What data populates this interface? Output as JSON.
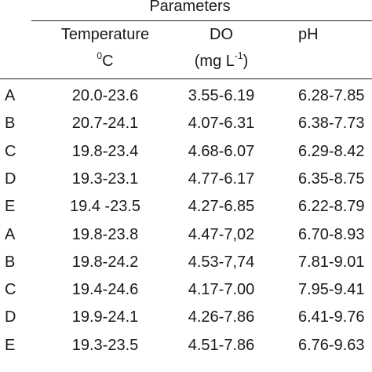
{
  "table": {
    "group_header": "Parameters",
    "columns": [
      {
        "name": "Temperature",
        "unit_sup": "0",
        "unit": "C"
      },
      {
        "name": "DO",
        "unit_prefix": "(mg L",
        "unit_sup": "-1",
        "unit_suffix": ")"
      },
      {
        "name": "pH"
      }
    ],
    "rows": [
      {
        "label": "A",
        "temperature": "20.0-23.6",
        "do": "3.55-6.19",
        "ph": "6.28-7.85"
      },
      {
        "label": "B",
        "temperature": "20.7-24.1",
        "do": "4.07-6.31",
        "ph": "6.38-7.73"
      },
      {
        "label": "C",
        "temperature": "19.8-23.4",
        "do": "4.68-6.07",
        "ph": "6.29-8.42"
      },
      {
        "label": "D",
        "temperature": "19.3-23.1",
        "do": "4.77-6.17",
        "ph": "6.35-8.75"
      },
      {
        "label": "E",
        "temperature": "19.4 -23.5",
        "do": "4.27-6.85",
        "ph": "6.22-8.79"
      },
      {
        "label": "A",
        "temperature": "19.8-23.8",
        "do": "4.47-7,02",
        "ph": "6.70-8.93"
      },
      {
        "label": "B",
        "temperature": "19.8-24.2",
        "do": "4.53-7,74",
        "ph": "7.81-9.01"
      },
      {
        "label": "C",
        "temperature": "19.4-24.6",
        "do": "4.17-7.00",
        "ph": "7.95-9.41"
      },
      {
        "label": "D",
        "temperature": "19.9-24.1",
        "do": "4.26-7.86",
        "ph": "6.41-9.76"
      },
      {
        "label": "E",
        "temperature": "19.3-23.5",
        "do": "4.51-7.86",
        "ph": "6.76-9.63"
      }
    ]
  }
}
